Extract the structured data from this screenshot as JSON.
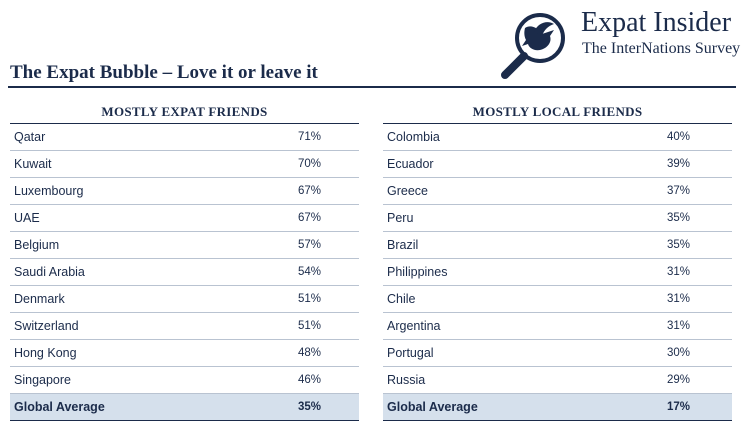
{
  "header": {
    "brand_title": "Expat Insider",
    "brand_subtitle": "The InterNations Survey",
    "page_title": "The Expat Bubble – Love it or leave it"
  },
  "colors": {
    "navy": "#1b2b4a",
    "highlight": "#d5e0ec",
    "rule": "#b9c3d1"
  },
  "tables": {
    "expat": {
      "heading": "MOSTLY EXPAT FRIENDS",
      "rows": [
        {
          "name": "Qatar",
          "pct": "71%"
        },
        {
          "name": "Kuwait",
          "pct": "70%"
        },
        {
          "name": "Luxembourg",
          "pct": "67%"
        },
        {
          "name": "UAE",
          "pct": "67%"
        },
        {
          "name": "Belgium",
          "pct": "57%"
        },
        {
          "name": "Saudi Arabia",
          "pct": "54%"
        },
        {
          "name": "Denmark",
          "pct": "51%"
        },
        {
          "name": "Switzerland",
          "pct": "51%"
        },
        {
          "name": "Hong Kong",
          "pct": "48%"
        },
        {
          "name": "Singapore",
          "pct": "46%"
        }
      ],
      "average": {
        "name": "Global Average",
        "pct": "35%"
      }
    },
    "local": {
      "heading": "MOSTLY LOCAL FRIENDS",
      "rows": [
        {
          "name": "Colombia",
          "pct": "40%"
        },
        {
          "name": "Ecuador",
          "pct": "39%"
        },
        {
          "name": "Greece",
          "pct": "37%"
        },
        {
          "name": "Peru",
          "pct": "35%"
        },
        {
          "name": "Brazil",
          "pct": "35%"
        },
        {
          "name": "Philippines",
          "pct": "31%"
        },
        {
          "name": "Chile",
          "pct": "31%"
        },
        {
          "name": "Argentina",
          "pct": "31%"
        },
        {
          "name": "Portugal",
          "pct": "30%"
        },
        {
          "name": "Russia",
          "pct": "29%"
        }
      ],
      "average": {
        "name": "Global Average",
        "pct": "17%"
      }
    }
  }
}
